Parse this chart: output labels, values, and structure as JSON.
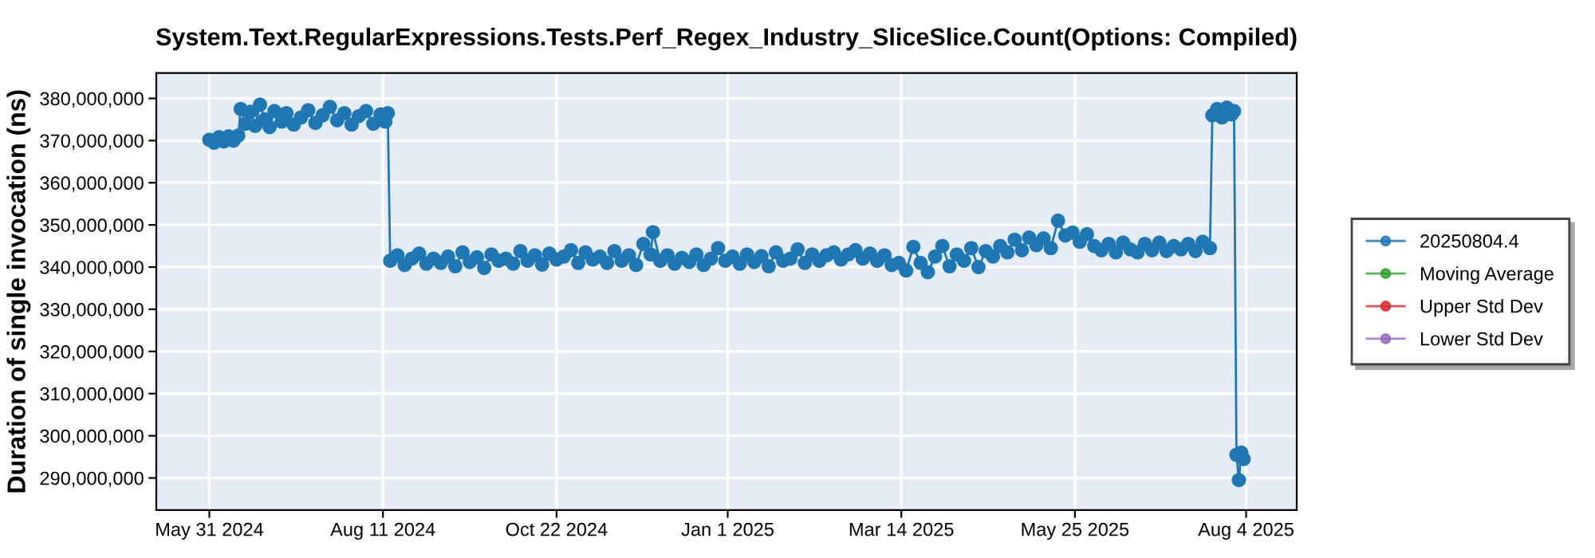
{
  "chart_data": {
    "type": "line",
    "title": "System.Text.RegularExpressions.Tests.Perf_Regex_Industry_SliceSlice.Count(Options: Compiled)",
    "ylabel": "Duration of single invocation (ns)",
    "xlim": [
      "2024-05-09",
      "2025-08-25"
    ],
    "xticks": [
      {
        "value": "2024-05-31",
        "label": "May 31 2024"
      },
      {
        "value": "2024-08-11",
        "label": "Aug 11 2024"
      },
      {
        "value": "2024-10-22",
        "label": "Oct 22 2024"
      },
      {
        "value": "2025-01-01",
        "label": "Jan 1 2025"
      },
      {
        "value": "2025-03-14",
        "label": "Mar 14 2025"
      },
      {
        "value": "2025-05-25",
        "label": "May 25 2025"
      },
      {
        "value": "2025-08-04",
        "label": "Aug 4 2025"
      }
    ],
    "ylim": [
      282400000,
      386000000
    ],
    "yticks": [
      {
        "value": 290000000,
        "label": "290,000,000"
      },
      {
        "value": 300000000,
        "label": "300,000,000"
      },
      {
        "value": 310000000,
        "label": "310,000,000"
      },
      {
        "value": 320000000,
        "label": "320,000,000"
      },
      {
        "value": 330000000,
        "label": "330,000,000"
      },
      {
        "value": 340000000,
        "label": "340,000,000"
      },
      {
        "value": 350000000,
        "label": "350,000,000"
      },
      {
        "value": 360000000,
        "label": "360,000,000"
      },
      {
        "value": 370000000,
        "label": "370,000,000"
      },
      {
        "value": 380000000,
        "label": "380,000,000"
      }
    ],
    "grid": true,
    "legend": "right",
    "marker": "circle",
    "line_style": "solid",
    "series": [
      {
        "name": "20250804.4",
        "color": "#1f77b4",
        "x": [
          "2024-05-31",
          "2024-06-02",
          "2024-06-04",
          "2024-06-06",
          "2024-06-08",
          "2024-06-10",
          "2024-06-12",
          "2024-06-13",
          "2024-06-15",
          "2024-06-17",
          "2024-06-19",
          "2024-06-21",
          "2024-06-23",
          "2024-06-25",
          "2024-06-27",
          "2024-06-30",
          "2024-07-02",
          "2024-07-05",
          "2024-07-08",
          "2024-07-11",
          "2024-07-14",
          "2024-07-17",
          "2024-07-20",
          "2024-07-23",
          "2024-07-26",
          "2024-07-29",
          "2024-08-01",
          "2024-08-04",
          "2024-08-07",
          "2024-08-10",
          "2024-08-12",
          "2024-08-13",
          "2024-08-14",
          "2024-08-17",
          "2024-08-20",
          "2024-08-23",
          "2024-08-26",
          "2024-08-29",
          "2024-09-01",
          "2024-09-04",
          "2024-09-07",
          "2024-09-10",
          "2024-09-13",
          "2024-09-16",
          "2024-09-19",
          "2024-09-22",
          "2024-09-25",
          "2024-09-28",
          "2024-10-01",
          "2024-10-04",
          "2024-10-07",
          "2024-10-10",
          "2024-10-13",
          "2024-10-16",
          "2024-10-19",
          "2024-10-22",
          "2024-10-25",
          "2024-10-28",
          "2024-10-31",
          "2024-11-03",
          "2024-11-06",
          "2024-11-09",
          "2024-11-12",
          "2024-11-15",
          "2024-11-18",
          "2024-11-21",
          "2024-11-24",
          "2024-11-27",
          "2024-11-30",
          "2024-12-01",
          "2024-12-04",
          "2024-12-07",
          "2024-12-10",
          "2024-12-13",
          "2024-12-16",
          "2024-12-19",
          "2024-12-22",
          "2024-12-25",
          "2024-12-28",
          "2024-12-31",
          "2025-01-03",
          "2025-01-06",
          "2025-01-09",
          "2025-01-12",
          "2025-01-15",
          "2025-01-18",
          "2025-01-21",
          "2025-01-24",
          "2025-01-27",
          "2025-01-30",
          "2025-02-02",
          "2025-02-05",
          "2025-02-08",
          "2025-02-11",
          "2025-02-14",
          "2025-02-17",
          "2025-02-20",
          "2025-02-23",
          "2025-02-26",
          "2025-03-01",
          "2025-03-04",
          "2025-03-07",
          "2025-03-10",
          "2025-03-13",
          "2025-03-16",
          "2025-03-19",
          "2025-03-22",
          "2025-03-25",
          "2025-03-28",
          "2025-03-31",
          "2025-04-03",
          "2025-04-06",
          "2025-04-09",
          "2025-04-12",
          "2025-04-15",
          "2025-04-18",
          "2025-04-21",
          "2025-04-24",
          "2025-04-27",
          "2025-04-30",
          "2025-05-03",
          "2025-05-06",
          "2025-05-09",
          "2025-05-12",
          "2025-05-15",
          "2025-05-18",
          "2025-05-21",
          "2025-05-24",
          "2025-05-27",
          "2025-05-30",
          "2025-06-02",
          "2025-06-05",
          "2025-06-08",
          "2025-06-11",
          "2025-06-14",
          "2025-06-17",
          "2025-06-20",
          "2025-06-23",
          "2025-06-26",
          "2025-06-29",
          "2025-07-02",
          "2025-07-05",
          "2025-07-08",
          "2025-07-11",
          "2025-07-14",
          "2025-07-17",
          "2025-07-20",
          "2025-07-21",
          "2025-07-23",
          "2025-07-25",
          "2025-07-27",
          "2025-07-29",
          "2025-07-30",
          "2025-07-31",
          "2025-08-01",
          "2025-08-02",
          "2025-08-03"
        ],
        "values": [
          370200000,
          369500000,
          370800000,
          369800000,
          371000000,
          370000000,
          371200000,
          377500000,
          374000000,
          376800000,
          373500000,
          378500000,
          375000000,
          373200000,
          377000000,
          374500000,
          376500000,
          373800000,
          375500000,
          377200000,
          374200000,
          376000000,
          378000000,
          374800000,
          376500000,
          373800000,
          375800000,
          377000000,
          374000000,
          376200000,
          374500000,
          376500000,
          341500000,
          342800000,
          340500000,
          342000000,
          343200000,
          340800000,
          342000000,
          341000000,
          342500000,
          340200000,
          343500000,
          341200000,
          342300000,
          339800000,
          343000000,
          341500000,
          342000000,
          340800000,
          343800000,
          341500000,
          342800000,
          340600000,
          343200000,
          341800000,
          342500000,
          344000000,
          341000000,
          343500000,
          341800000,
          342500000,
          341000000,
          343800000,
          341500000,
          342800000,
          340500000,
          345500000,
          343000000,
          348300000,
          341500000,
          342800000,
          340800000,
          342200000,
          341200000,
          343000000,
          340500000,
          342000000,
          344500000,
          341500000,
          342500000,
          340800000,
          343000000,
          341200000,
          342600000,
          340200000,
          343500000,
          341500000,
          342000000,
          344200000,
          341000000,
          343000000,
          341500000,
          342800000,
          343500000,
          341800000,
          343000000,
          344000000,
          342000000,
          343200000,
          341500000,
          342800000,
          340500000,
          341000000,
          339200000,
          344800000,
          341000000,
          338800000,
          342500000,
          345000000,
          340200000,
          343000000,
          341500000,
          344500000,
          340000000,
          343800000,
          342500000,
          345000000,
          343500000,
          346500000,
          344000000,
          347000000,
          345200000,
          346800000,
          344500000,
          351000000,
          347500000,
          348200000,
          346000000,
          347800000,
          345000000,
          344000000,
          345500000,
          343500000,
          345800000,
          344200000,
          343500000,
          345500000,
          344000000,
          345800000,
          343800000,
          345000000,
          344200000,
          345500000,
          343800000,
          346000000,
          344500000,
          376000000,
          377500000,
          375500000,
          377800000,
          376200000,
          377000000,
          295500000,
          289500000,
          296000000,
          294500000
        ]
      },
      {
        "name": "Moving Average",
        "color": "#2ca02c"
      },
      {
        "name": "Upper Std Dev",
        "color": "#d62728"
      },
      {
        "name": "Lower Std Dev",
        "color": "#9467bd"
      }
    ]
  }
}
